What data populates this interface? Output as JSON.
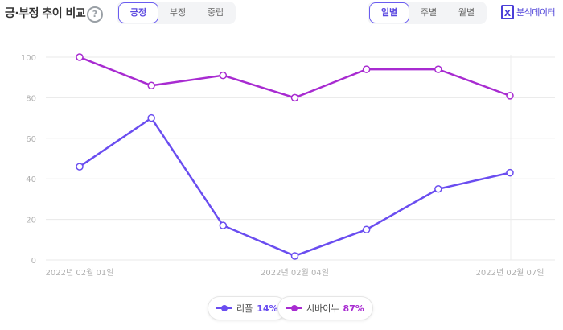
{
  "header": {
    "title": "긍·부정 추이 비교",
    "help_glyph": "?"
  },
  "sentiment_tabs": [
    "긍정",
    "부정",
    "중립"
  ],
  "sentiment_active": 0,
  "period_tabs": [
    "일별",
    "주별",
    "월별"
  ],
  "period_active": 0,
  "excel": {
    "icon_glyph": "X",
    "label": "분석데이터"
  },
  "chart_data": {
    "type": "line",
    "x": [
      "2022년 02월 01일",
      "2022년 02월 02일",
      "2022년 02월 03일",
      "2022년 02월 04일",
      "2022년 02월 05일",
      "2022년 02월 06일",
      "2022년 02월 07일"
    ],
    "x_tick_labels": [
      "2022년 02월 01일",
      "2022년 02월 04일",
      "2022년 02월 07일"
    ],
    "ylim": [
      0,
      100
    ],
    "yticks": [
      0,
      20,
      40,
      60,
      80,
      100
    ],
    "grid": true,
    "series": [
      {
        "name": "리플",
        "color": "#6a4df0",
        "values": [
          46,
          70,
          17,
          2,
          15,
          35,
          43
        ]
      },
      {
        "name": "시바이누",
        "color": "#a82bd1",
        "values": [
          100,
          86,
          91,
          80,
          94,
          94,
          81
        ]
      }
    ]
  },
  "legend": [
    {
      "name": "리플",
      "pct": "14%",
      "color": "#6a4df0"
    },
    {
      "name": "시바이누",
      "pct": "87%",
      "color": "#a82bd1"
    }
  ]
}
